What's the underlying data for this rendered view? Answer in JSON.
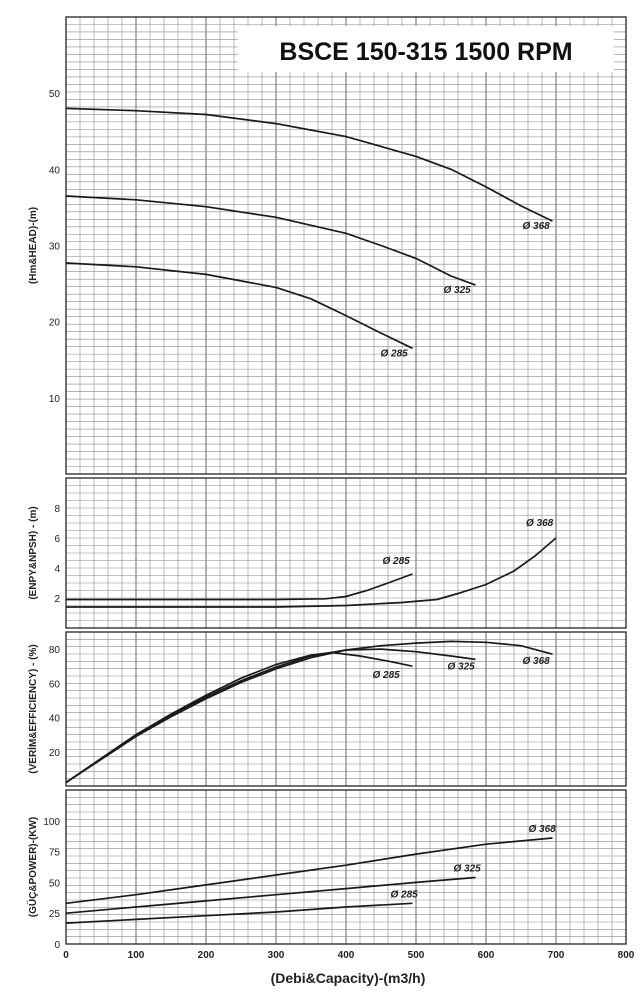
{
  "title": "BSCE 150-315 1500 RPM",
  "xlabel": "(Debi&Capacity)-(m3/h)",
  "x_ticks": [
    "0",
    "100",
    "200",
    "300",
    "400",
    "500",
    "600",
    "700",
    "800"
  ],
  "chart_data": [
    {
      "type": "line",
      "ylabel": "(Hm&HEAD)-(m)",
      "xlim": [
        0,
        800
      ],
      "ylim": [
        0,
        60
      ],
      "y_ticks": [
        "10",
        "20",
        "30",
        "40",
        "50"
      ],
      "grid": true,
      "series": [
        {
          "name": "Ø 368",
          "points": [
            [
              0,
              48
            ],
            [
              100,
              47.7
            ],
            [
              200,
              47.2
            ],
            [
              300,
              46
            ],
            [
              400,
              44.3
            ],
            [
              500,
              41.7
            ],
            [
              550,
              40
            ],
            [
              600,
              37.7
            ],
            [
              650,
              35.2
            ],
            [
              695,
              33.2
            ]
          ]
        },
        {
          "name": "Ø 325",
          "points": [
            [
              0,
              36.5
            ],
            [
              100,
              36
            ],
            [
              200,
              35.1
            ],
            [
              300,
              33.7
            ],
            [
              400,
              31.6
            ],
            [
              450,
              30
            ],
            [
              500,
              28.3
            ],
            [
              550,
              26
            ],
            [
              585,
              24.8
            ]
          ]
        },
        {
          "name": "Ø 285",
          "points": [
            [
              0,
              27.7
            ],
            [
              100,
              27.2
            ],
            [
              200,
              26.2
            ],
            [
              300,
              24.5
            ],
            [
              350,
              23
            ],
            [
              400,
              20.8
            ],
            [
              450,
              18.5
            ],
            [
              495,
              16.5
            ]
          ]
        }
      ]
    },
    {
      "type": "line",
      "ylabel": "(ENPY&NPSH) - (m)",
      "xlim": [
        0,
        800
      ],
      "ylim": [
        0,
        10
      ],
      "y_ticks": [
        "2",
        "4",
        "6",
        "8"
      ],
      "grid": true,
      "series": [
        {
          "name": "Ø 285",
          "points": [
            [
              0,
              1.9
            ],
            [
              200,
              1.9
            ],
            [
              300,
              1.9
            ],
            [
              370,
              1.95
            ],
            [
              400,
              2.1
            ],
            [
              430,
              2.5
            ],
            [
              460,
              3
            ],
            [
              495,
              3.6
            ]
          ]
        },
        {
          "name": "Ø 368",
          "points": [
            [
              0,
              1.4
            ],
            [
              300,
              1.4
            ],
            [
              400,
              1.5
            ],
            [
              480,
              1.7
            ],
            [
              530,
              1.9
            ],
            [
              560,
              2.3
            ],
            [
              600,
              2.9
            ],
            [
              640,
              3.8
            ],
            [
              670,
              4.8
            ],
            [
              700,
              6
            ]
          ]
        }
      ]
    },
    {
      "type": "line",
      "ylabel": "(VERİM&EFFICIENCY) - (%)",
      "xlim": [
        0,
        800
      ],
      "ylim": [
        0,
        90
      ],
      "y_ticks": [
        "20",
        "40",
        "60",
        "80"
      ],
      "grid": true,
      "series": [
        {
          "name": "Ø 285",
          "points": [
            [
              0,
              2
            ],
            [
              50,
              16
            ],
            [
              100,
              30
            ],
            [
              150,
              42
            ],
            [
              200,
              53
            ],
            [
              250,
              63
            ],
            [
              300,
              71
            ],
            [
              350,
              76.5
            ],
            [
              380,
              78
            ],
            [
              420,
              76
            ],
            [
              460,
              73
            ],
            [
              495,
              70
            ]
          ]
        },
        {
          "name": "Ø 325",
          "points": [
            [
              0,
              2
            ],
            [
              50,
              16
            ],
            [
              100,
              30
            ],
            [
              150,
              41.5
            ],
            [
              200,
              52
            ],
            [
              250,
              61.5
            ],
            [
              300,
              69.5
            ],
            [
              350,
              76
            ],
            [
              400,
              79.5
            ],
            [
              450,
              80
            ],
            [
              500,
              78.5
            ],
            [
              550,
              76
            ],
            [
              585,
              74
            ]
          ]
        },
        {
          "name": "Ø 368",
          "points": [
            [
              0,
              2
            ],
            [
              50,
              15.5
            ],
            [
              100,
              29
            ],
            [
              150,
              40.5
            ],
            [
              200,
              51
            ],
            [
              250,
              60.5
            ],
            [
              300,
              68.5
            ],
            [
              350,
              75
            ],
            [
              400,
              79.5
            ],
            [
              450,
              82
            ],
            [
              500,
              83.5
            ],
            [
              550,
              84.5
            ],
            [
              600,
              84
            ],
            [
              650,
              82
            ],
            [
              695,
              77
            ]
          ]
        }
      ]
    },
    {
      "type": "line",
      "ylabel": "(GÜÇ&POWER)-(KW)",
      "xlim": [
        0,
        800
      ],
      "ylim": [
        0,
        125
      ],
      "y_ticks": [
        "0",
        "25",
        "50",
        "75",
        "100"
      ],
      "grid": true,
      "series": [
        {
          "name": "Ø 368",
          "points": [
            [
              0,
              33
            ],
            [
              100,
              40
            ],
            [
              200,
              48
            ],
            [
              300,
              56
            ],
            [
              400,
              64
            ],
            [
              500,
              73
            ],
            [
              600,
              81
            ],
            [
              695,
              86
            ]
          ]
        },
        {
          "name": "Ø 325",
          "points": [
            [
              0,
              25
            ],
            [
              100,
              30
            ],
            [
              200,
              35
            ],
            [
              300,
              40
            ],
            [
              400,
              45
            ],
            [
              500,
              50
            ],
            [
              585,
              54
            ]
          ]
        },
        {
          "name": "Ø 285",
          "points": [
            [
              0,
              17
            ],
            [
              100,
              20
            ],
            [
              200,
              23
            ],
            [
              300,
              26
            ],
            [
              400,
              30
            ],
            [
              495,
              33
            ]
          ]
        }
      ]
    }
  ]
}
